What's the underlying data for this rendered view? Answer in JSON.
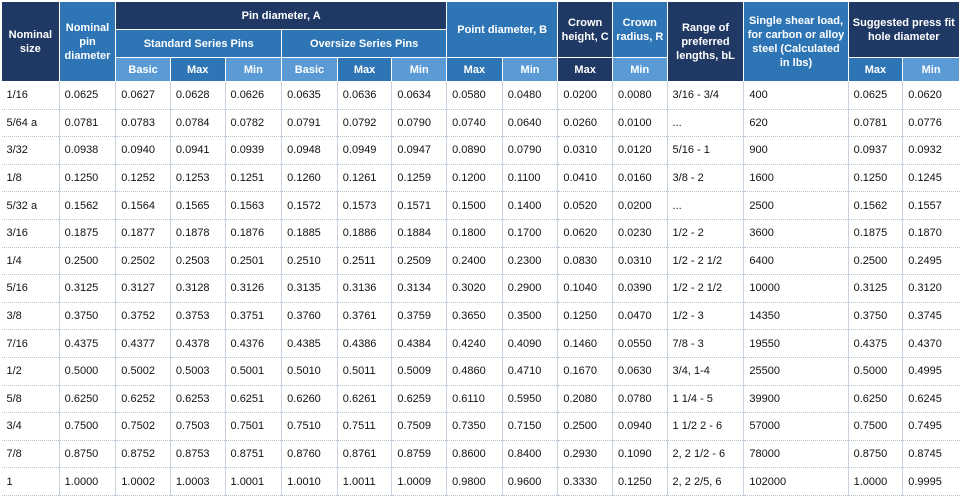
{
  "headers": {
    "nominal_size": "Nominal size",
    "nominal_pin_diameter": "Nominal pin diameter",
    "pin_diameter": "Pin diameter, A",
    "standard_series": "Standard Series Pins",
    "oversize_series": "Oversize Series Pins",
    "point_diameter": "Point diameter, B",
    "crown_height": "Crown height, C",
    "crown_radius": "Crown radius, R",
    "range_lengths": "Range of preferred lengths, bL",
    "shear_load": "Single shear load, for carbon or alloy steel (Calculated in lbs)",
    "press_fit": "Suggested press fit hole diameter",
    "basic": "Basic",
    "max": "Max",
    "min": "Min"
  },
  "rows": [
    [
      "1/16",
      "0.0625",
      "0.0627",
      "0.0628",
      "0.0626",
      "0.0635",
      "0.0636",
      "0.0634",
      "0.0580",
      "0.0480",
      "0.0200",
      "0.0080",
      "3/16 - 3/4",
      "400",
      "0.0625",
      "0.0620"
    ],
    [
      "5/64 a",
      "0.0781",
      "0.0783",
      "0.0784",
      "0.0782",
      "0.0791",
      "0.0792",
      "0.0790",
      "0.0740",
      "0.0640",
      "0.0260",
      "0.0100",
      "...",
      "620",
      "0.0781",
      "0.0776"
    ],
    [
      "3/32",
      "0.0938",
      "0.0940",
      "0.0941",
      "0.0939",
      "0.0948",
      "0.0949",
      "0.0947",
      "0.0890",
      "0.0790",
      "0.0310",
      "0.0120",
      "5/16 - 1",
      "900",
      "0.0937",
      "0.0932"
    ],
    [
      "1/8",
      "0.1250",
      "0.1252",
      "0.1253",
      "0.1251",
      "0.1260",
      "0.1261",
      "0.1259",
      "0.1200",
      "0.1100",
      "0.0410",
      "0.0160",
      "3/8 - 2",
      "1600",
      "0.1250",
      "0.1245"
    ],
    [
      "5/32 a",
      "0.1562",
      "0.1564",
      "0.1565",
      "0.1563",
      "0.1572",
      "0.1573",
      "0.1571",
      "0.1500",
      "0.1400",
      "0.0520",
      "0.0200",
      "...",
      "2500",
      "0.1562",
      "0.1557"
    ],
    [
      "3/16",
      "0.1875",
      "0.1877",
      "0.1878",
      "0.1876",
      "0.1885",
      "0.1886",
      "0.1884",
      "0.1800",
      "0.1700",
      "0.0620",
      "0.0230",
      "1/2 - 2",
      "3600",
      "0.1875",
      "0.1870"
    ],
    [
      "1/4",
      "0.2500",
      "0.2502",
      "0.2503",
      "0.2501",
      "0.2510",
      "0.2511",
      "0.2509",
      "0.2400",
      "0.2300",
      "0.0830",
      "0.0310",
      "1/2 - 2 1/2",
      "6400",
      "0.2500",
      "0.2495"
    ],
    [
      "5/16",
      "0.3125",
      "0.3127",
      "0.3128",
      "0.3126",
      "0.3135",
      "0.3136",
      "0.3134",
      "0.3020",
      "0.2900",
      "0.1040",
      "0.0390",
      "1/2 - 2 1/2",
      "10000",
      "0.3125",
      "0.3120"
    ],
    [
      "3/8",
      "0.3750",
      "0.3752",
      "0.3753",
      "0.3751",
      "0.3760",
      "0.3761",
      "0.3759",
      "0.3650",
      "0.3500",
      "0.1250",
      "0.0470",
      "1/2 - 3",
      "14350",
      "0.3750",
      "0.3745"
    ],
    [
      "7/16",
      "0.4375",
      "0.4377",
      "0.4378",
      "0.4376",
      "0.4385",
      "0.4386",
      "0.4384",
      "0.4240",
      "0.4090",
      "0.1460",
      "0.0550",
      "7/8 - 3",
      "19550",
      "0.4375",
      "0.4370"
    ],
    [
      "1/2",
      "0.5000",
      "0.5002",
      "0.5003",
      "0.5001",
      "0.5010",
      "0.5011",
      "0.5009",
      "0.4860",
      "0.4710",
      "0.1670",
      "0.0630",
      "3/4, 1-4",
      "25500",
      "0.5000",
      "0.4995"
    ],
    [
      "5/8",
      "0.6250",
      "0.6252",
      "0.6253",
      "0.6251",
      "0.6260",
      "0.6261",
      "0.6259",
      "0.6110",
      "0.5950",
      "0.2080",
      "0.0780",
      "1 1/4 - 5",
      "39900",
      "0.6250",
      "0.6245"
    ],
    [
      "3/4",
      "0.7500",
      "0.7502",
      "0.7503",
      "0.7501",
      "0.7510",
      "0.7511",
      "0.7509",
      "0.7350",
      "0.7150",
      "0.2500",
      "0.0940",
      "1 1/2 2 - 6",
      "57000",
      "0.7500",
      "0.7495"
    ],
    [
      "7/8",
      "0.8750",
      "0.8752",
      "0.8753",
      "0.8751",
      "0.8760",
      "0.8761",
      "0.8759",
      "0.8600",
      "0.8400",
      "0.2930",
      "0.1090",
      "2, 2 1/2 - 6",
      "78000",
      "0.8750",
      "0.8745"
    ],
    [
      "1",
      "1.0000",
      "1.0002",
      "1.0003",
      "1.0001",
      "1.0010",
      "1.0011",
      "1.0009",
      "0.9800",
      "0.9600",
      "0.3330",
      "0.1250",
      "2, 2 2/5, 6",
      "102000",
      "1.0000",
      "0.9995"
    ]
  ]
}
